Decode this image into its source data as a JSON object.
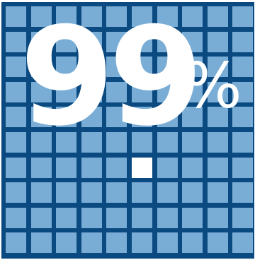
{
  "stat": {
    "number": "99",
    "unit": "%"
  },
  "grid": {
    "rows": 10,
    "columns": 10,
    "highlighted_cells": 1,
    "total_cells": 100
  },
  "colors": {
    "grid_line": "#0a4a80",
    "cell_fill": "#79add6",
    "highlight_fill": "#ffffff",
    "text": "#ffffff"
  }
}
